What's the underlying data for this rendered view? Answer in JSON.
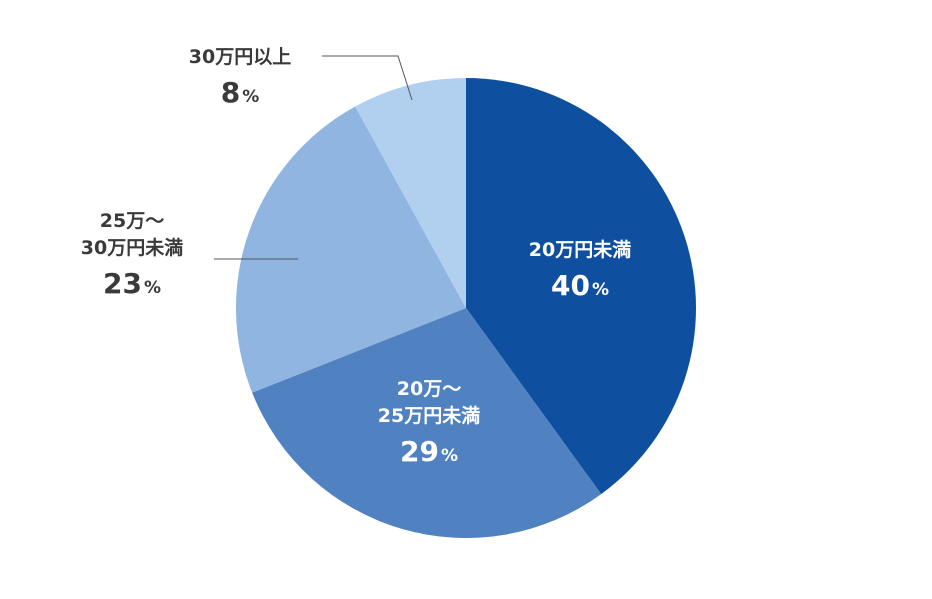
{
  "chart_data": {
    "type": "pie",
    "title": "",
    "slices": [
      {
        "label_lines": [
          "20万円未満"
        ],
        "value": 40,
        "value_text": "40",
        "unit": "%",
        "color": "#0f4f9f",
        "text_color": "#ffffff"
      },
      {
        "label_lines": [
          "20万～",
          "25万円未満"
        ],
        "value": 29,
        "value_text": "29",
        "unit": "%",
        "color": "#5081c0",
        "text_color": "#ffffff"
      },
      {
        "label_lines": [
          "25万～",
          "30万円未満"
        ],
        "value": 23,
        "value_text": "23",
        "unit": "%",
        "color": "#8fb5e0",
        "text_color": "#3a3a3a"
      },
      {
        "label_lines": [
          "30万円以上"
        ],
        "value": 8,
        "value_text": "8",
        "unit": "%",
        "color": "#b1d0ef",
        "text_color": "#3a3a3a"
      }
    ]
  }
}
